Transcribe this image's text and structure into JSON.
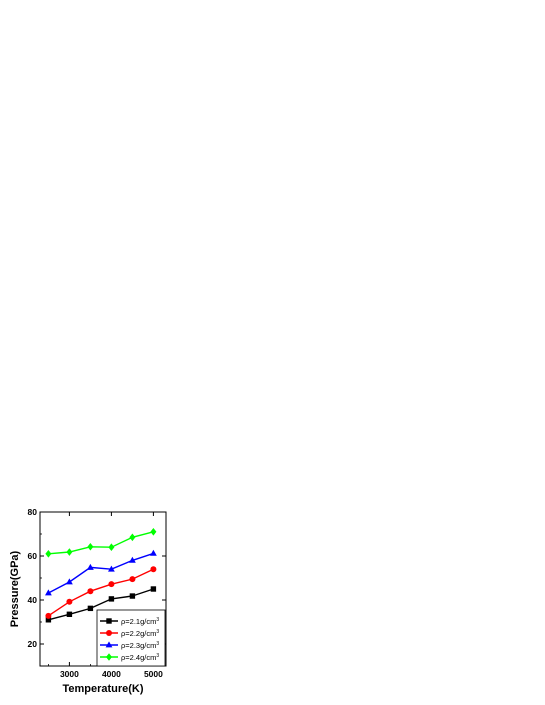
{
  "chart_data": {
    "type": "line",
    "xlabel": "Temperature(K)",
    "ylabel": "Pressure(GPa)",
    "xlim": [
      2300,
      5300
    ],
    "ylim": [
      10,
      80
    ],
    "x_ticks": [
      3000,
      4000,
      5000
    ],
    "y_ticks": [
      20,
      40,
      60,
      80
    ],
    "x": [
      2500,
      3000,
      3500,
      4000,
      4500,
      5000
    ],
    "grid": false,
    "legend_position": "bottom-right",
    "series": [
      {
        "name": "ρ=2.1g/cm³",
        "label_main": "ρ=2.1g/cm",
        "label_sup": "3",
        "color": "#000000",
        "marker": "square",
        "values": [
          31.0,
          33.5,
          36.2,
          40.5,
          41.8,
          45.0
        ]
      },
      {
        "name": "ρ=2.2g/cm³",
        "label_main": "ρ=2.2g/cm",
        "label_sup": "3",
        "color": "#ff0000",
        "marker": "circle",
        "values": [
          32.8,
          39.2,
          44.0,
          47.2,
          49.5,
          54.0
        ]
      },
      {
        "name": "ρ=2.3g/cm³",
        "label_main": "ρ=2.3g/cm",
        "label_sup": "3",
        "color": "#0000ff",
        "marker": "triangle",
        "values": [
          43.2,
          48.2,
          54.8,
          54.0,
          58.0,
          61.2
        ]
      },
      {
        "name": "ρ=2.4g/cm³",
        "label_main": "ρ=2.4g/cm",
        "label_sup": "3",
        "color": "#00ff00",
        "marker": "diamond",
        "values": [
          61.0,
          61.8,
          64.2,
          64.0,
          68.5,
          71.0
        ]
      }
    ]
  }
}
